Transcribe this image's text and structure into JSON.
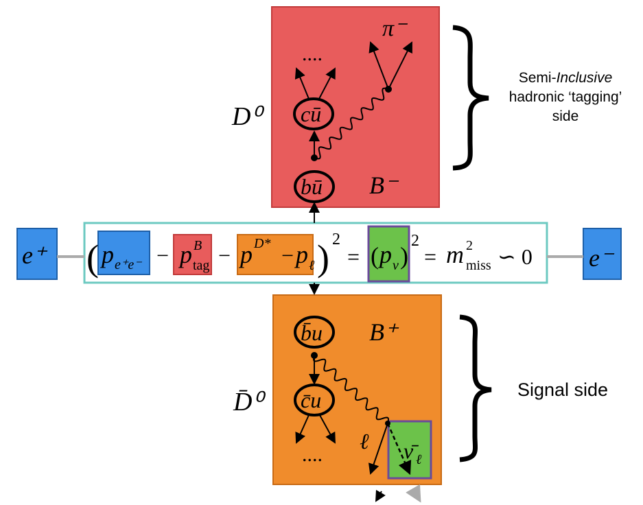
{
  "tag_box": {
    "meson": "D⁰",
    "label": "B⁻",
    "quark_top": "cū",
    "quark_bottom": "bū",
    "pion": "π⁻",
    "dots": "...."
  },
  "signal_box": {
    "meson": "D̄⁰",
    "label": "B⁺",
    "quark_top": "b̄u",
    "quark_bottom": "c̄u",
    "lepton": "ℓ",
    "neutrino": "ν̄",
    "neutrino_sub": "ℓ",
    "dots": "...."
  },
  "beams": {
    "left": "e⁺",
    "right": "e⁻"
  },
  "equation": {
    "open": "(",
    "p1": "p",
    "p1_sub": "e⁺e⁻",
    "minus1": "−",
    "p2": "p",
    "p2_sup": "B",
    "p2_sub": "tag",
    "minus2": "−",
    "p3": "p",
    "p3_sup": "D*",
    "minus3": "−",
    "p4": "p",
    "p4_sub": "ℓ",
    "close": ")",
    "square1": "2",
    "eq1": "=",
    "nu_open": "(",
    "nu": "p",
    "nu_sub": "ν",
    "nu_close": ")",
    "square2": "2",
    "eq2": "=",
    "m": "m",
    "m_sup": "2",
    "m_sub": "miss",
    "approx": "∽ 0"
  },
  "annotations": {
    "tag_side_1a": "Semi-",
    "tag_side_1b": "Inclusive",
    "tag_side_2": "hadronic ‘tagging’",
    "tag_side_3": "side",
    "signal_side": "Signal side"
  }
}
